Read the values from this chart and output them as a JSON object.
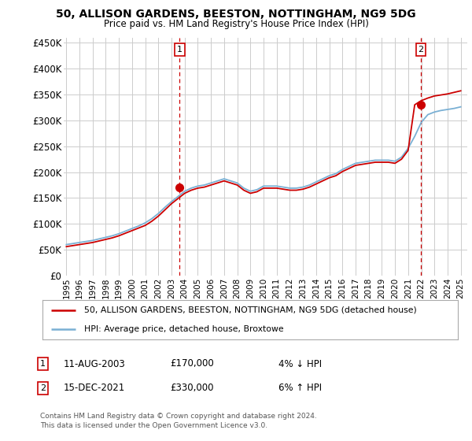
{
  "title": "50, ALLISON GARDENS, BEESTON, NOTTINGHAM, NG9 5DG",
  "subtitle": "Price paid vs. HM Land Registry's House Price Index (HPI)",
  "ylabel_ticks": [
    "£0",
    "£50K",
    "£100K",
    "£150K",
    "£200K",
    "£250K",
    "£300K",
    "£350K",
    "£400K",
    "£450K"
  ],
  "ytick_values": [
    0,
    50000,
    100000,
    150000,
    200000,
    250000,
    300000,
    350000,
    400000,
    450000
  ],
  "ylim": [
    0,
    460000
  ],
  "xlim_start": 1994.8,
  "xlim_end": 2025.5,
  "xtick_years": [
    1995,
    1996,
    1997,
    1998,
    1999,
    2000,
    2001,
    2002,
    2003,
    2004,
    2005,
    2006,
    2007,
    2008,
    2009,
    2010,
    2011,
    2012,
    2013,
    2014,
    2015,
    2016,
    2017,
    2018,
    2019,
    2020,
    2021,
    2022,
    2023,
    2024,
    2025
  ],
  "hpi_x": [
    1995.0,
    1995.5,
    1996.0,
    1996.5,
    1997.0,
    1997.5,
    1998.0,
    1998.5,
    1999.0,
    1999.5,
    2000.0,
    2000.5,
    2001.0,
    2001.5,
    2002.0,
    2002.5,
    2003.0,
    2003.5,
    2004.0,
    2004.5,
    2005.0,
    2005.5,
    2006.0,
    2006.5,
    2007.0,
    2007.5,
    2008.0,
    2008.5,
    2009.0,
    2009.5,
    2010.0,
    2010.5,
    2011.0,
    2011.5,
    2012.0,
    2012.5,
    2013.0,
    2013.5,
    2014.0,
    2014.5,
    2015.0,
    2015.5,
    2016.0,
    2016.5,
    2017.0,
    2017.5,
    2018.0,
    2018.5,
    2019.0,
    2019.5,
    2020.0,
    2020.5,
    2021.0,
    2021.5,
    2022.0,
    2022.5,
    2023.0,
    2023.5,
    2024.0,
    2024.5,
    2025.0
  ],
  "hpi_y": [
    60000,
    62000,
    64000,
    66000,
    68000,
    71000,
    74000,
    77000,
    81000,
    86000,
    91000,
    96000,
    102000,
    110000,
    120000,
    132000,
    143000,
    153000,
    163000,
    169000,
    173000,
    175000,
    179000,
    183000,
    187000,
    183000,
    179000,
    169000,
    163000,
    166000,
    173000,
    173000,
    173000,
    171000,
    169000,
    169000,
    171000,
    175000,
    181000,
    187000,
    193000,
    197000,
    205000,
    211000,
    217000,
    219000,
    221000,
    223000,
    223000,
    223000,
    221000,
    229000,
    246000,
    269000,
    296000,
    311000,
    316000,
    319000,
    321000,
    323000,
    326000
  ],
  "price_x": [
    1995.0,
    1995.5,
    1996.0,
    1996.5,
    1997.0,
    1997.5,
    1998.0,
    1998.5,
    1999.0,
    1999.5,
    2000.0,
    2000.5,
    2001.0,
    2001.5,
    2002.0,
    2002.5,
    2003.0,
    2003.5,
    2004.0,
    2004.5,
    2005.0,
    2005.5,
    2006.0,
    2006.5,
    2007.0,
    2007.5,
    2008.0,
    2008.5,
    2009.0,
    2009.5,
    2010.0,
    2010.5,
    2011.0,
    2011.5,
    2012.0,
    2012.5,
    2013.0,
    2013.5,
    2014.0,
    2014.5,
    2015.0,
    2015.5,
    2016.0,
    2016.5,
    2017.0,
    2017.5,
    2018.0,
    2018.5,
    2019.0,
    2019.5,
    2020.0,
    2020.5,
    2021.0,
    2021.5,
    2022.0,
    2022.5,
    2023.0,
    2023.5,
    2024.0,
    2024.5,
    2025.0
  ],
  "price_y": [
    56000,
    58000,
    60000,
    62000,
    64000,
    67000,
    70000,
    73000,
    77000,
    82000,
    87000,
    92000,
    97000,
    105000,
    115000,
    127000,
    139000,
    149000,
    159000,
    165000,
    169000,
    171000,
    175000,
    179000,
    183000,
    179000,
    175000,
    165000,
    159000,
    162000,
    169000,
    169000,
    169000,
    167000,
    165000,
    165000,
    167000,
    171000,
    177000,
    183000,
    189000,
    193000,
    201000,
    207000,
    213000,
    215000,
    217000,
    219000,
    219000,
    219000,
    217000,
    225000,
    242000,
    330000,
    338000,
    343000,
    347000,
    349000,
    351000,
    354000,
    357000
  ],
  "sale1_x": 2003.62,
  "sale1_y": 170000,
  "sale1_label": "1",
  "sale2_x": 2021.96,
  "sale2_y": 330000,
  "sale2_label": "2",
  "dashed_line_color": "#cc0000",
  "hpi_color": "#7ab0d4",
  "price_color": "#cc0000",
  "sale_marker_color": "#cc0000",
  "legend1_text": "50, ALLISON GARDENS, BEESTON, NOTTINGHAM, NG9 5DG (detached house)",
  "legend2_text": "HPI: Average price, detached house, Broxtowe",
  "ann1_date": "11-AUG-2003",
  "ann1_price": "£170,000",
  "ann1_hpi": "4% ↓ HPI",
  "ann2_date": "15-DEC-2021",
  "ann2_price": "£330,000",
  "ann2_hpi": "6% ↑ HPI",
  "footnote": "Contains HM Land Registry data © Crown copyright and database right 2024.\nThis data is licensed under the Open Government Licence v3.0.",
  "background_color": "#ffffff",
  "grid_color": "#cccccc"
}
